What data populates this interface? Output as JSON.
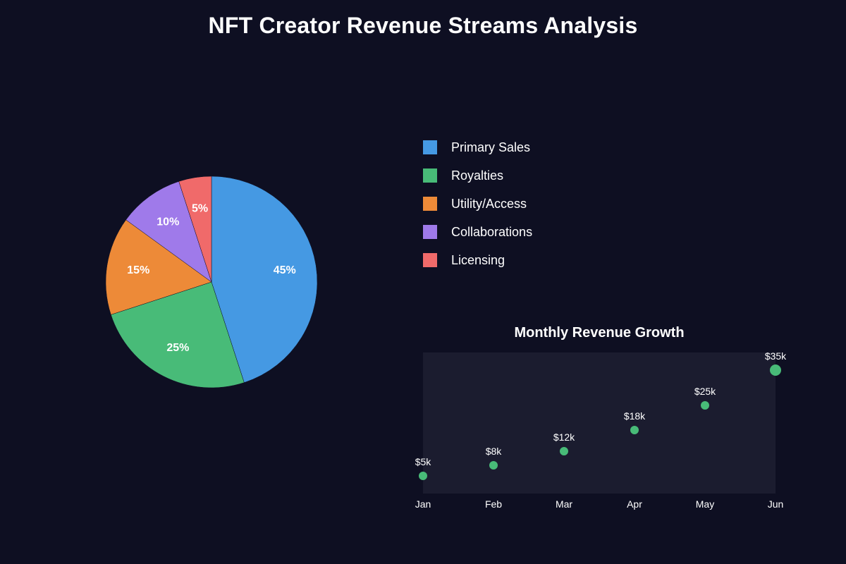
{
  "title": "NFT Creator Revenue Streams Analysis",
  "chart_data": [
    {
      "type": "pie",
      "title": "",
      "categories": [
        "Primary Sales",
        "Royalties",
        "Utility/Access",
        "Collaborations",
        "Licensing"
      ],
      "values": [
        45,
        25,
        15,
        10,
        5
      ],
      "labels": [
        "45%",
        "25%",
        "15%",
        "10%",
        "5%"
      ],
      "colors": [
        "#4599e3",
        "#48bb78",
        "#ed8a38",
        "#9f7aea",
        "#f06a6a"
      ],
      "legend_position": "right"
    },
    {
      "type": "scatter",
      "title": "Monthly Revenue Growth",
      "categories": [
        "Jan",
        "Feb",
        "Mar",
        "Apr",
        "May",
        "Jun"
      ],
      "values": [
        5,
        8,
        12,
        18,
        25,
        35
      ],
      "labels": [
        "$5k",
        "$8k",
        "$12k",
        "$18k",
        "$25k",
        "$35k"
      ],
      "unit": "$k",
      "ylim": [
        0,
        40
      ],
      "color": "#48bb78",
      "panel_color": "#1b1c2f"
    }
  ]
}
